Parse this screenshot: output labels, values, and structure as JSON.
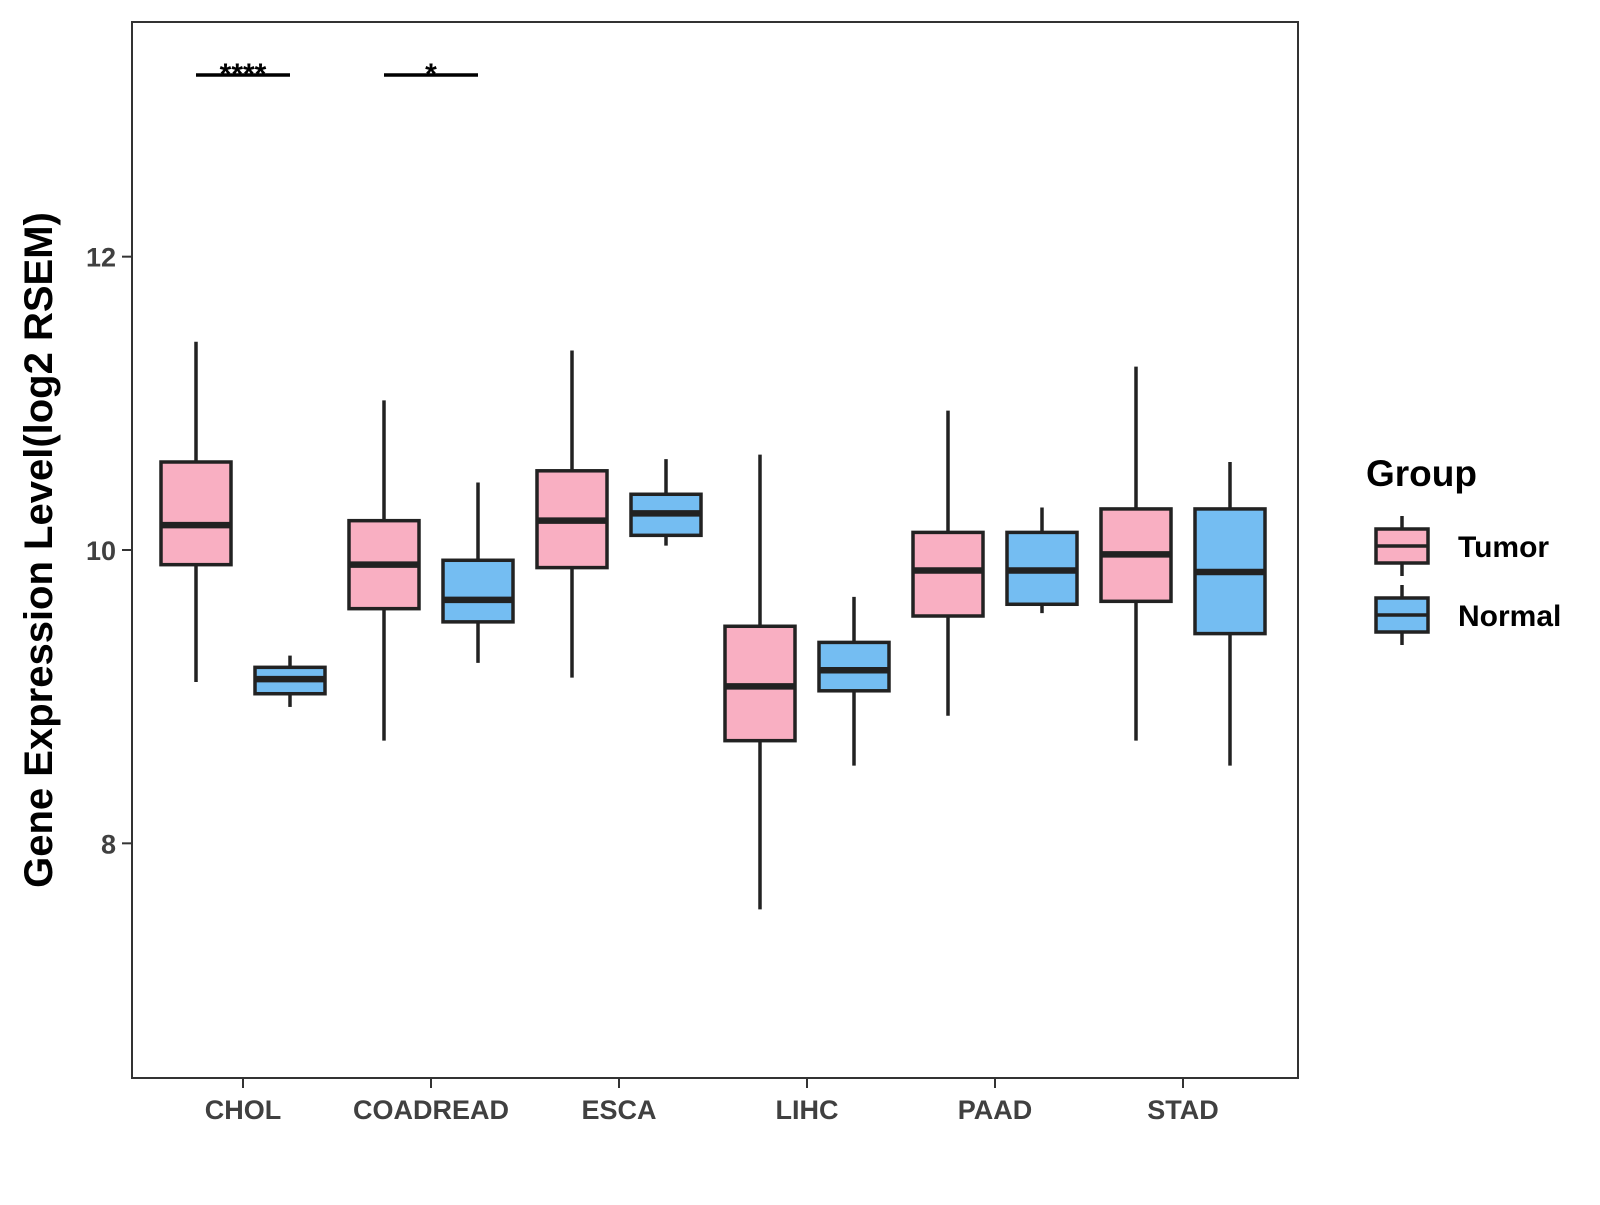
{
  "chart_data": {
    "type": "boxplot",
    "title": "",
    "xlabel": "",
    "ylabel": "Gene Expression Level(log2 RSEM)",
    "ylim": [
      6.4,
      13.6
    ],
    "yticks": [
      8,
      10,
      12
    ],
    "grid": false,
    "categories": [
      "CHOL",
      "COADREAD",
      "ESCA",
      "LIHC",
      "PAAD",
      "STAD"
    ],
    "legend": {
      "title": "Group",
      "position": "right",
      "entries": [
        {
          "name": "Tumor",
          "color": "#F9AFC2"
        },
        {
          "name": "Normal",
          "color": "#74BDF2"
        }
      ]
    },
    "series": [
      {
        "name": "Tumor",
        "color": "#F9AFC2",
        "boxes": [
          {
            "category": "CHOL",
            "min": 9.1,
            "q1": 9.9,
            "median": 10.17,
            "q3": 10.6,
            "max": 11.42
          },
          {
            "category": "COADREAD",
            "min": 8.7,
            "q1": 9.6,
            "median": 9.9,
            "q3": 10.2,
            "max": 11.02
          },
          {
            "category": "ESCA",
            "min": 9.13,
            "q1": 9.88,
            "median": 10.2,
            "q3": 10.54,
            "max": 11.36
          },
          {
            "category": "LIHC",
            "min": 7.55,
            "q1": 8.7,
            "median": 9.07,
            "q3": 9.48,
            "max": 10.65
          },
          {
            "category": "PAAD",
            "min": 8.87,
            "q1": 9.55,
            "median": 9.86,
            "q3": 10.12,
            "max": 10.95
          },
          {
            "category": "STAD",
            "min": 8.7,
            "q1": 9.65,
            "median": 9.97,
            "q3": 10.28,
            "max": 11.25
          }
        ]
      },
      {
        "name": "Normal",
        "color": "#74BDF2",
        "boxes": [
          {
            "category": "CHOL",
            "min": 8.93,
            "q1": 9.02,
            "median": 9.12,
            "q3": 9.2,
            "max": 9.28
          },
          {
            "category": "COADREAD",
            "min": 9.23,
            "q1": 9.51,
            "median": 9.66,
            "q3": 9.93,
            "max": 10.46
          },
          {
            "category": "ESCA",
            "min": 10.03,
            "q1": 10.1,
            "median": 10.25,
            "q3": 10.38,
            "max": 10.62
          },
          {
            "category": "LIHC",
            "min": 8.53,
            "q1": 9.04,
            "median": 9.18,
            "q3": 9.37,
            "max": 9.68
          },
          {
            "category": "PAAD",
            "min": 9.57,
            "q1": 9.63,
            "median": 9.86,
            "q3": 10.12,
            "max": 10.29
          },
          {
            "category": "STAD",
            "min": 8.53,
            "q1": 9.43,
            "median": 9.85,
            "q3": 10.28,
            "max": 10.6
          }
        ]
      }
    ],
    "significance": [
      {
        "category": "CHOL",
        "label": "****"
      },
      {
        "category": "COADREAD",
        "label": "*"
      }
    ]
  }
}
